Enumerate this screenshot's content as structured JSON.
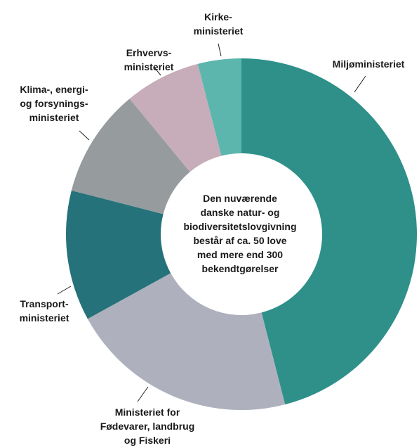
{
  "chart_data": {
    "type": "donut",
    "categories": [
      [
        "Miljøministeriet"
      ],
      [
        "Ministeriet for",
        "Fødevarer, landbrug",
        "og Fiskeri"
      ],
      [
        "Transport-",
        "ministeriet"
      ],
      [
        "Klima-, energi-",
        "og forsynings-",
        "ministeriet"
      ],
      [
        "Erhvervs-",
        "ministeriet"
      ],
      [
        "Kirke-",
        "ministeriet"
      ]
    ],
    "values": [
      46,
      21,
      12,
      10,
      7,
      4
    ],
    "colors": [
      "#2e9089",
      "#aeb1bd",
      "#26727a",
      "#969b9e",
      "#c6adb9",
      "#5cb6ad"
    ],
    "center_text": [
      "Den nuværende",
      "danske natur- og",
      "biodiversitetslovgivning",
      "består af ca. 50 love",
      "med mere end 300",
      "bekendtgørelser"
    ]
  }
}
